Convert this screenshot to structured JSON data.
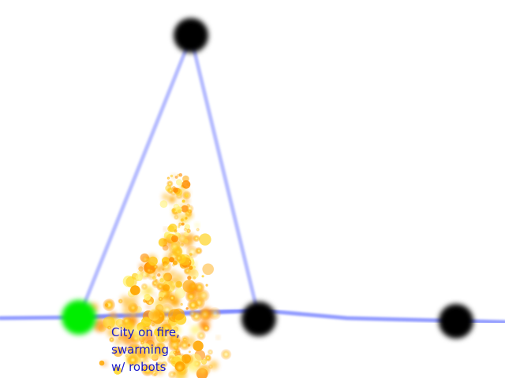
{
  "nodes": [
    {
      "id": "peak-node",
      "state": "unvisited",
      "color": "#000000"
    },
    {
      "id": "home-city-node",
      "state": "current",
      "color": "#00ee00"
    },
    {
      "id": "middle-node",
      "state": "unvisited",
      "color": "#000000"
    },
    {
      "id": "far-right-node",
      "state": "unvisited",
      "color": "#000000"
    }
  ],
  "edges": [
    {
      "from": "home-city-node",
      "to": "peak-node"
    },
    {
      "from": "peak-node",
      "to": "middle-node"
    },
    {
      "from": "home-city-node",
      "to": "middle-node"
    }
  ],
  "edge_color": "#6b78ff",
  "fire_colors": [
    "#ffd21e",
    "#ffa600",
    "#ff8c00",
    "#fff27a"
  ],
  "city_label": {
    "line1": "City on fire,",
    "line2": "swarming",
    "line3": "w/ robots"
  }
}
